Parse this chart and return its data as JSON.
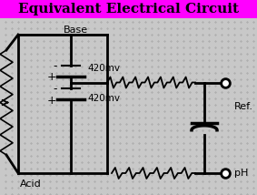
{
  "title": "Equivalent Electrical Circuit",
  "title_bg": "#FF00FF",
  "title_color": "black",
  "bg_color": "#C8C8C8",
  "circuit_color": "black",
  "label_base": "Base",
  "label_acid": "Acid",
  "label_ref": "Ref.",
  "label_ph": "pH",
  "label_420mv_top": "420mv",
  "label_420mv_bot": "420mv",
  "figsize": [
    2.83,
    2.14
  ],
  "dpi": 100,
  "title_fontsize": 11,
  "body_fontsize": 7.5
}
